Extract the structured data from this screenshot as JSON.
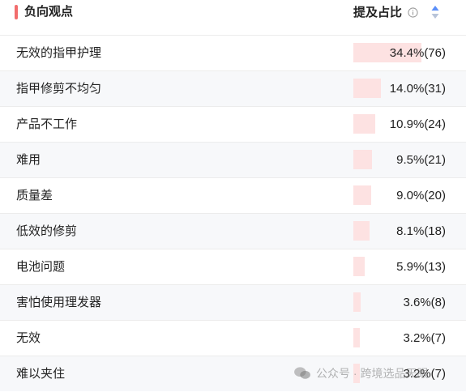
{
  "header": {
    "title": "负向观点",
    "column_label": "提及占比",
    "accent_color": "#f26d6d",
    "info_icon": "info-icon",
    "sort_icon": "sort-icon"
  },
  "bar_color": "#fde2e2",
  "rows": [
    {
      "label": "无效的指甲护理",
      "percent": 34.4,
      "value": "34.4%(76)"
    },
    {
      "label": "指甲修剪不均匀",
      "percent": 14.0,
      "value": "14.0%(31)"
    },
    {
      "label": "产品不工作",
      "percent": 10.9,
      "value": "10.9%(24)"
    },
    {
      "label": "难用",
      "percent": 9.5,
      "value": "9.5%(21)"
    },
    {
      "label": "质量差",
      "percent": 9.0,
      "value": "9.0%(20)"
    },
    {
      "label": "低效的修剪",
      "percent": 8.1,
      "value": "8.1%(18)"
    },
    {
      "label": "电池问题",
      "percent": 5.9,
      "value": "5.9%(13)"
    },
    {
      "label": "害怕使用理发器",
      "percent": 3.6,
      "value": "3.6%(8)"
    },
    {
      "label": "无效",
      "percent": 3.2,
      "value": "3.2%(7)"
    },
    {
      "label": "难以夹住",
      "percent": 3.2,
      "value": "3.2%(7)"
    }
  ],
  "watermark": {
    "text": "公众号 · 跨境选品天眼"
  }
}
